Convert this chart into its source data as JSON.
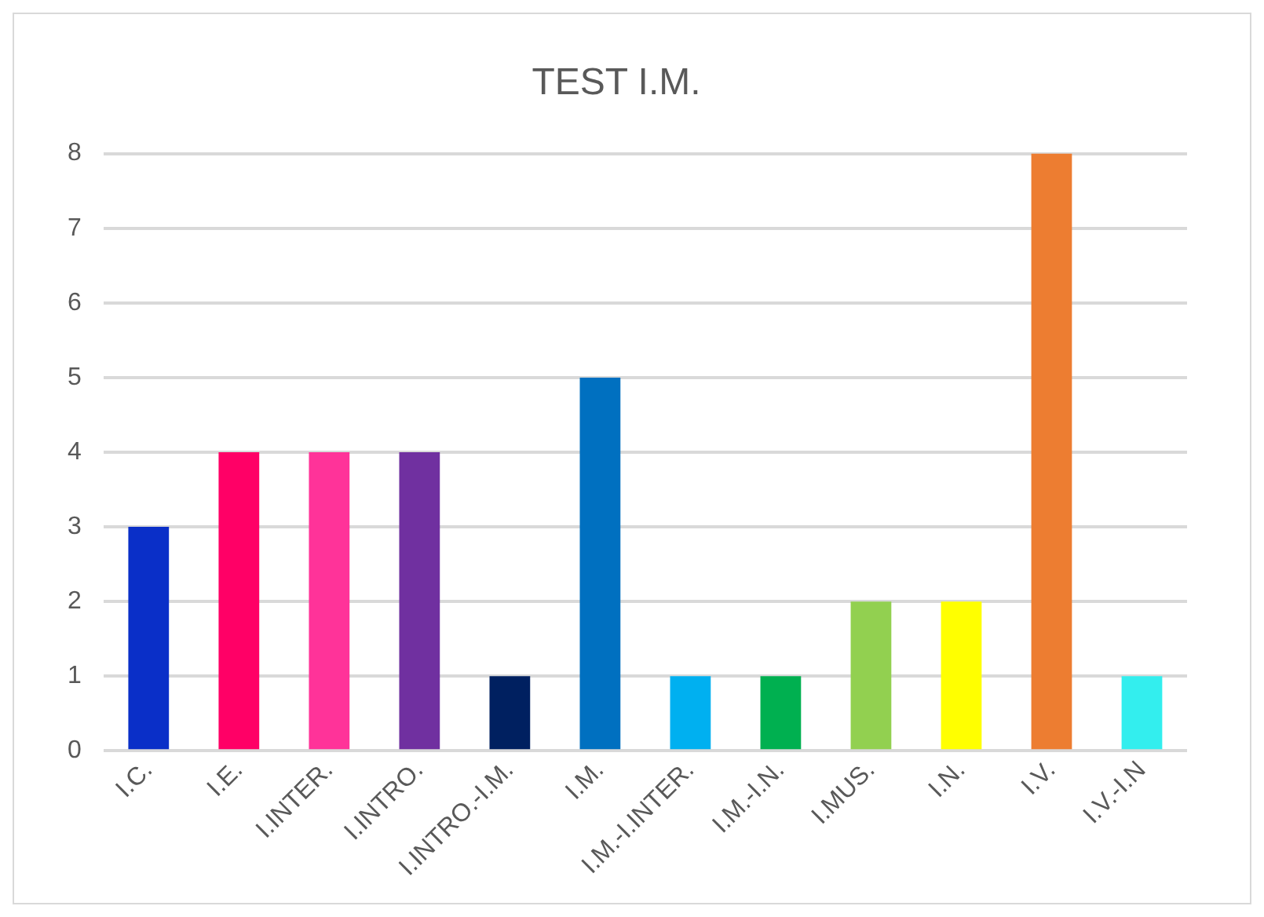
{
  "chart_data": {
    "type": "bar",
    "title": "TEST I.M.",
    "categories": [
      "I.C.",
      "I.E.",
      "I.INTER.",
      "I.INTRO.",
      "I.INTRO.-I.M.",
      "I.M.",
      "I.M.-I.INTER.",
      "I.M.-I.N.",
      "I.MUS.",
      "I.N.",
      "I.V.",
      "I.V.-I.N"
    ],
    "values": [
      3,
      4,
      4,
      4,
      1,
      5,
      1,
      1,
      2,
      2,
      8,
      1
    ],
    "colors": [
      "#0a2fc8",
      "#ff0066",
      "#ff3399",
      "#7030a0",
      "#002060",
      "#0070c0",
      "#00b0f0",
      "#00b050",
      "#92d050",
      "#ffff00",
      "#ed7d31",
      "#33eeee"
    ],
    "ylim": [
      0,
      8
    ],
    "yticks": [
      0,
      1,
      2,
      3,
      4,
      5,
      6,
      7,
      8
    ],
    "grid": "y",
    "legend": false
  }
}
